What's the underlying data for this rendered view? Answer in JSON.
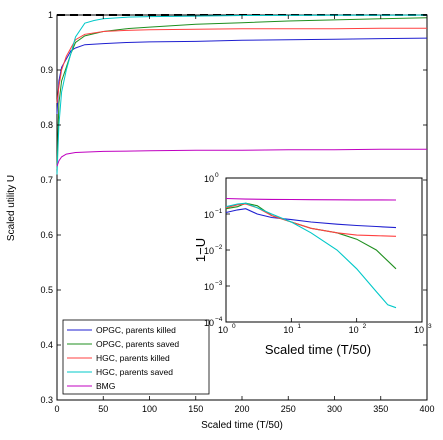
{
  "chart_data": [
    {
      "type": "line",
      "xlabel": "Scaled time (T/50)",
      "ylabel": "Scaled utility U",
      "xlim": [
        0,
        400
      ],
      "ylim": [
        0.3,
        1.0
      ],
      "x_ticks": [
        "0",
        "50",
        "100",
        "150",
        "200",
        "250",
        "300",
        "350",
        "400"
      ],
      "y_ticks": [
        "0.3",
        "0.4",
        "0.5",
        "0.6",
        "0.7",
        "0.8",
        "0.9",
        "1"
      ],
      "grid": false,
      "legend_position": "bottom-left",
      "reference_line": {
        "y": 1.0,
        "style": "dashed",
        "color": "#000000"
      },
      "series": [
        {
          "name": "OPGC, parents killed",
          "color": "#1f1fd0",
          "x": [
            0,
            2,
            5,
            10,
            15,
            20,
            30,
            50,
            75,
            100,
            150,
            200,
            250,
            300,
            350,
            400
          ],
          "y": [
            0.82,
            0.88,
            0.905,
            0.92,
            0.935,
            0.94,
            0.946,
            0.948,
            0.95,
            0.951,
            0.952,
            0.954,
            0.955,
            0.956,
            0.957,
            0.958
          ]
        },
        {
          "name": "OPGC, parents saved",
          "color": "#1f8f1f",
          "x": [
            0,
            2,
            5,
            10,
            15,
            20,
            30,
            50,
            75,
            100,
            150,
            200,
            250,
            300,
            350,
            400
          ],
          "y": [
            0.72,
            0.84,
            0.88,
            0.905,
            0.93,
            0.95,
            0.962,
            0.97,
            0.975,
            0.978,
            0.983,
            0.986,
            0.989,
            0.991,
            0.993,
            0.995
          ]
        },
        {
          "name": "HGC, parents killed",
          "color": "#ff4040",
          "x": [
            0,
            2,
            5,
            10,
            15,
            20,
            30,
            50,
            75,
            100,
            150,
            200,
            250,
            300,
            350,
            400
          ],
          "y": [
            0.84,
            0.87,
            0.9,
            0.925,
            0.94,
            0.955,
            0.965,
            0.97,
            0.972,
            0.973,
            0.974,
            0.975,
            0.975,
            0.975,
            0.976,
            0.976
          ]
        },
        {
          "name": "HGC, parents saved",
          "color": "#00c8c8",
          "x": [
            0,
            2,
            5,
            10,
            15,
            20,
            30,
            40,
            50,
            75,
            100,
            150,
            200,
            250,
            300,
            350,
            400
          ],
          "y": [
            0.71,
            0.8,
            0.86,
            0.9,
            0.93,
            0.96,
            0.985,
            0.99,
            0.993,
            0.996,
            0.997,
            0.998,
            0.999,
            0.9993,
            0.9995,
            0.9997,
            0.9998
          ]
        },
        {
          "name": "BMG",
          "color": "#c000c0",
          "x": [
            0,
            2,
            5,
            10,
            20,
            50,
            100,
            150,
            200,
            250,
            300,
            350,
            400
          ],
          "y": [
            0.725,
            0.735,
            0.742,
            0.747,
            0.75,
            0.752,
            0.753,
            0.754,
            0.754,
            0.755,
            0.755,
            0.756,
            0.756
          ]
        }
      ]
    },
    {
      "type": "line",
      "xlabel": "Scaled time (T/50)",
      "ylabel": "1−U",
      "x_scale": "log",
      "y_scale": "log",
      "xlim": [
        1,
        1000
      ],
      "ylim": [
        0.0001,
        1
      ],
      "x_ticks": [
        {
          "base": "10",
          "exp": "0"
        },
        {
          "base": "10",
          "exp": "1"
        },
        {
          "base": "10",
          "exp": "2"
        },
        {
          "base": "10",
          "exp": "3"
        }
      ],
      "y_ticks": [
        {
          "base": "10",
          "exp": "0"
        },
        {
          "base": "10",
          "exp": "−1"
        },
        {
          "base": "10",
          "exp": "−2"
        },
        {
          "base": "10",
          "exp": "−3"
        },
        {
          "base": "10",
          "exp": "−4"
        }
      ],
      "grid": false,
      "series": [
        {
          "name": "OPGC, parents killed",
          "color": "#1f1fd0",
          "x": [
            1,
            1.5,
            2,
            3,
            5,
            10,
            20,
            50,
            100,
            200,
            400
          ],
          "y": [
            0.11,
            0.13,
            0.14,
            0.1,
            0.08,
            0.07,
            0.06,
            0.052,
            0.048,
            0.045,
            0.042
          ]
        },
        {
          "name": "OPGC, parents saved",
          "color": "#1f8f1f",
          "x": [
            1,
            1.5,
            2,
            3,
            5,
            10,
            20,
            50,
            100,
            200,
            400
          ],
          "y": [
            0.14,
            0.16,
            0.2,
            0.17,
            0.09,
            0.06,
            0.04,
            0.03,
            0.02,
            0.01,
            0.003
          ]
        },
        {
          "name": "HGC, parents killed",
          "color": "#ff4040",
          "x": [
            1,
            1.5,
            2,
            3,
            5,
            10,
            20,
            50,
            100,
            200,
            400
          ],
          "y": [
            0.15,
            0.18,
            0.19,
            0.15,
            0.09,
            0.06,
            0.04,
            0.03,
            0.026,
            0.025,
            0.024
          ]
        },
        {
          "name": "HGC, parents saved",
          "color": "#00c8c8",
          "x": [
            1,
            1.5,
            2,
            3,
            5,
            10,
            20,
            50,
            100,
            200,
            300,
            400
          ],
          "y": [
            0.16,
            0.19,
            0.2,
            0.15,
            0.1,
            0.06,
            0.03,
            0.01,
            0.003,
            0.0007,
            0.0003,
            0.00025
          ]
        },
        {
          "name": "BMG",
          "color": "#c000c0",
          "x": [
            1,
            2,
            5,
            10,
            20,
            50,
            100,
            200,
            400
          ],
          "y": [
            0.27,
            0.26,
            0.255,
            0.252,
            0.25,
            0.248,
            0.247,
            0.246,
            0.245
          ]
        }
      ]
    }
  ]
}
